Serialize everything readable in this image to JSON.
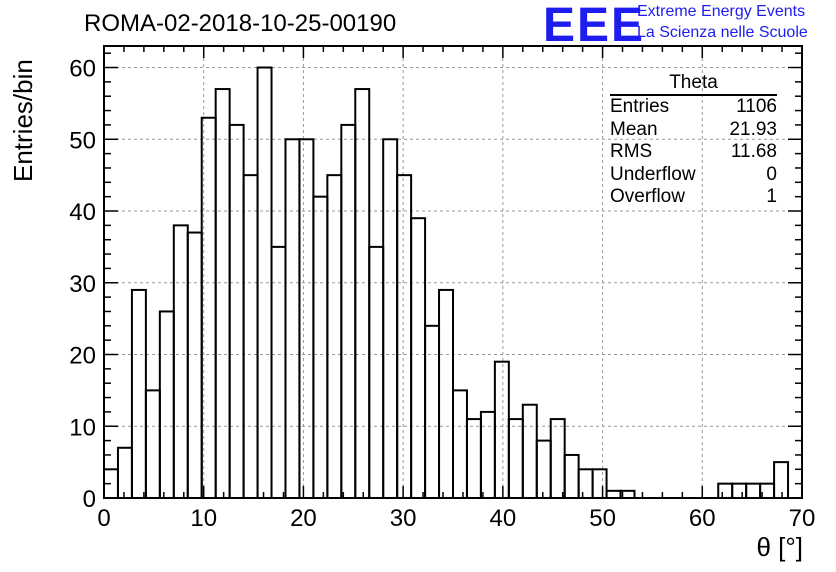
{
  "header": {
    "title": "ROMA-02-2018-10-25-00190",
    "logo_text": "EEE",
    "logo_line1": "Extreme Energy Events",
    "logo_line2": "La Scienza nelle Scuole",
    "logo_color": "#1d1df0"
  },
  "stats": {
    "title": "Theta",
    "rows": [
      {
        "label": "Entries",
        "value": "1106"
      },
      {
        "label": "Mean",
        "value": "21.93"
      },
      {
        "label": "RMS",
        "value": "11.68"
      },
      {
        "label": "Underflow",
        "value": "0"
      },
      {
        "label": "Overflow",
        "value": "1"
      }
    ]
  },
  "chart_data": {
    "type": "histogram",
    "xlabel": "θ [°]",
    "ylabel": "Entries/bin",
    "xlim": [
      0,
      70
    ],
    "ylim": [
      0,
      63
    ],
    "bin_width": 1.4,
    "bin_edges_start": 0,
    "values": [
      4,
      7,
      29,
      15,
      26,
      38,
      37,
      53,
      57,
      52,
      45,
      60,
      35,
      50,
      50,
      42,
      45,
      52,
      57,
      35,
      50,
      45,
      39,
      24,
      29,
      15,
      11,
      12,
      19,
      11,
      13,
      8,
      11,
      6,
      4,
      4,
      1,
      1,
      0,
      0,
      0,
      0,
      0,
      0,
      2,
      2,
      2,
      2,
      5
    ],
    "x_ticks": [
      0,
      10,
      20,
      30,
      40,
      50,
      60,
      70
    ],
    "y_ticks": [
      0,
      10,
      20,
      30,
      40,
      50,
      60
    ],
    "grid": true
  }
}
